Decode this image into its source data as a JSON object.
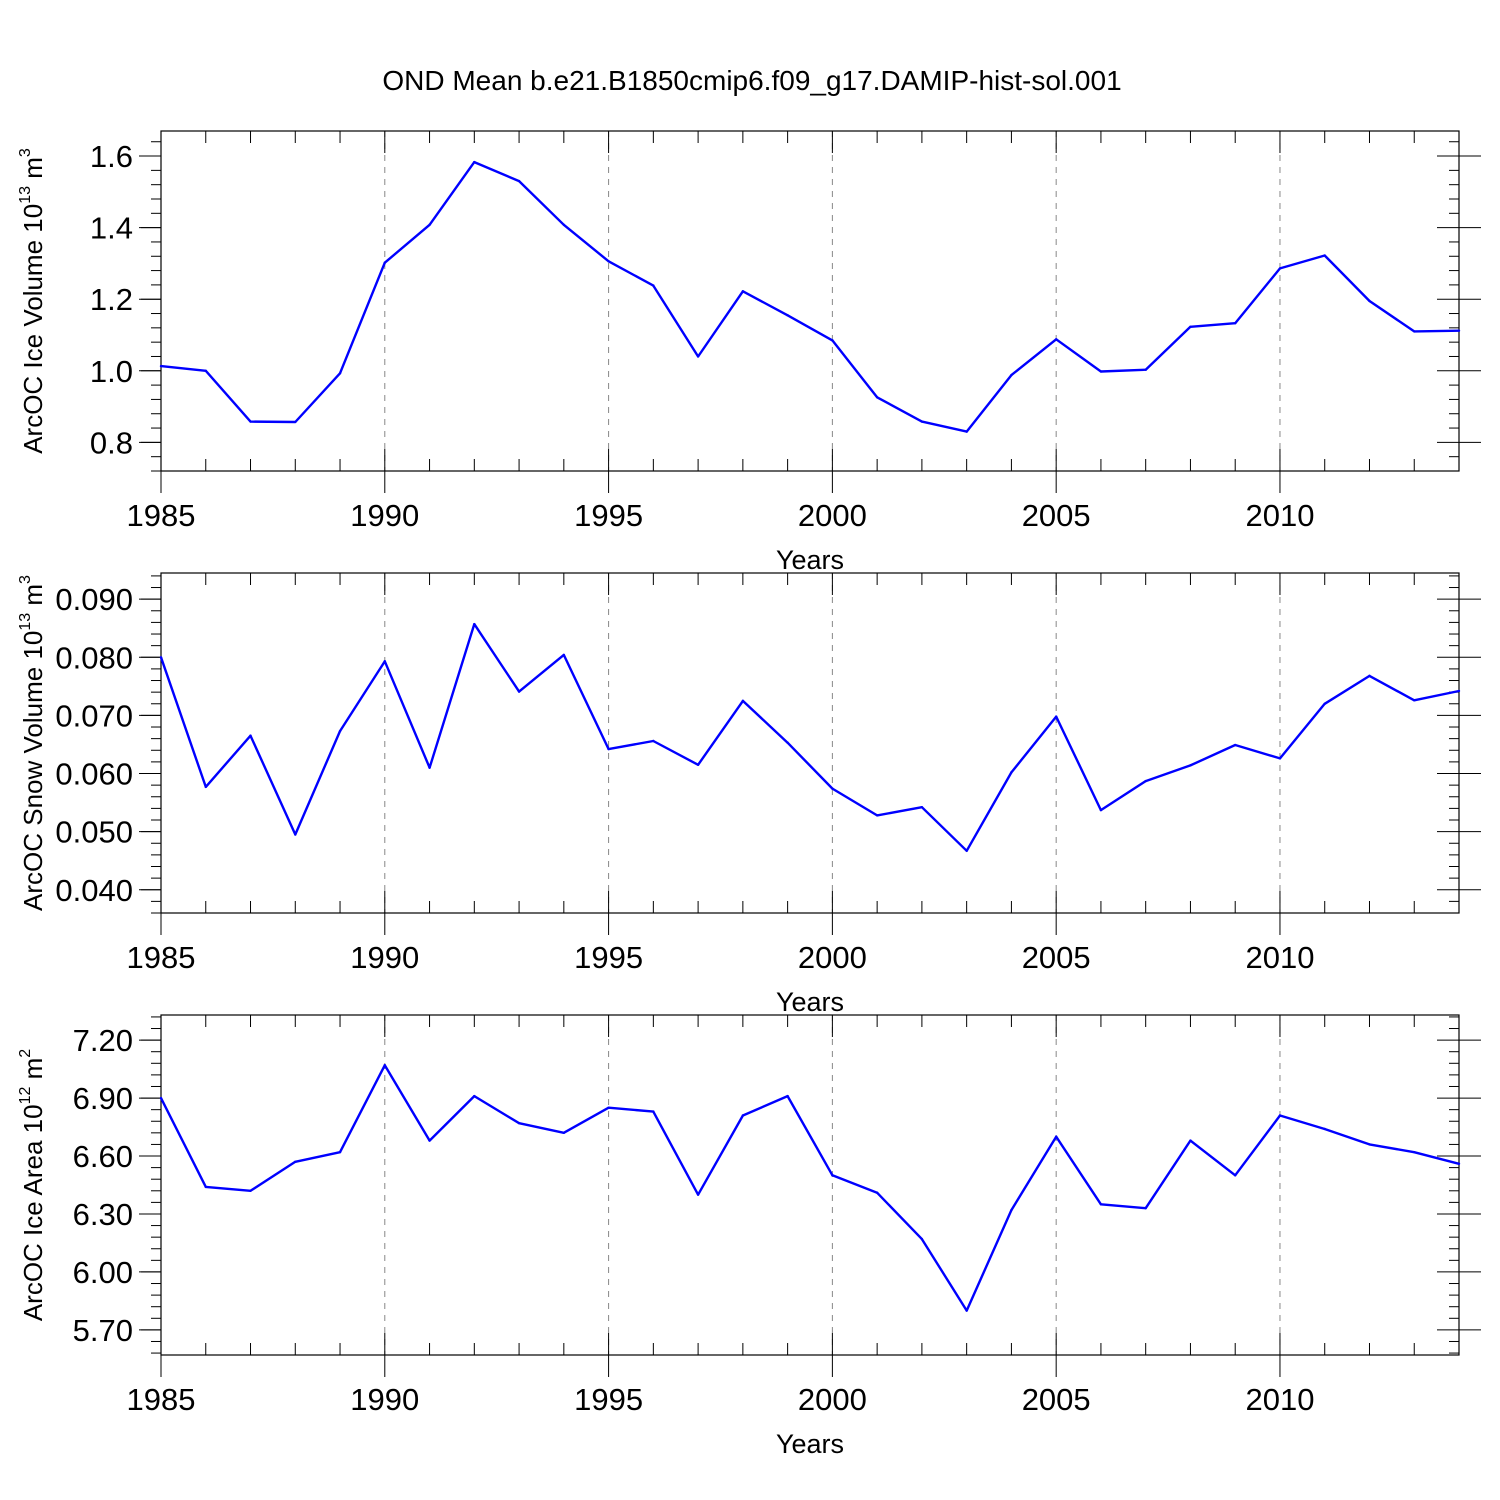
{
  "title": "OND Mean b.e21.B1850cmip6.f09_g17.DAMIP-hist-sol.001",
  "chart_data": [
    {
      "type": "line",
      "title": "OND Mean b.e21.B1850cmip6.f09_g17.DAMIP-hist-sol.001",
      "xlabel": "Years",
      "ylabel": {
        "prefix": "ArcOC Ice Volume 10",
        "exp": "13",
        "unit": " m",
        "unit_exp": "3"
      },
      "x": [
        1985,
        1986,
        1987,
        1988,
        1989,
        1990,
        1991,
        1992,
        1993,
        1994,
        1995,
        1996,
        1997,
        1998,
        1999,
        2000,
        2001,
        2002,
        2003,
        2004,
        2005,
        2006,
        2007,
        2008,
        2009,
        2010,
        2011,
        2012,
        2013,
        2014
      ],
      "values": [
        1.013,
        1.0,
        0.858,
        0.857,
        0.993,
        1.302,
        1.408,
        1.583,
        1.53,
        1.408,
        1.306,
        1.238,
        1.04,
        1.222,
        1.155,
        1.085,
        0.926,
        0.858,
        0.83,
        0.988,
        1.088,
        0.998,
        1.003,
        1.123,
        1.133,
        1.286,
        1.322,
        1.195,
        1.11,
        1.112
      ],
      "xlim": [
        1985,
        2014
      ],
      "ylim": [
        0.72,
        1.67
      ],
      "yticks": [
        0.8,
        1.0,
        1.2,
        1.4,
        1.6
      ],
      "ytick_labels": [
        "0.8",
        "1.0",
        "1.2",
        "1.4",
        "1.6"
      ],
      "xticks": [
        1985,
        1990,
        1995,
        2000,
        2005,
        2010
      ],
      "xtick_labels": [
        "1985",
        "1990",
        "1995",
        "2000",
        "2005",
        "2010"
      ],
      "grid": "vertical dashed at labeled years",
      "line_color": "#0000ff"
    },
    {
      "type": "line",
      "xlabel": "Years",
      "ylabel": {
        "prefix": "ArcOC Snow Volume 10",
        "exp": "13",
        "unit": " m",
        "unit_exp": "3"
      },
      "x": [
        1985,
        1986,
        1987,
        1988,
        1989,
        1990,
        1991,
        1992,
        1993,
        1994,
        1995,
        1996,
        1997,
        1998,
        1999,
        2000,
        2001,
        2002,
        2003,
        2004,
        2005,
        2006,
        2007,
        2008,
        2009,
        2010,
        2011,
        2012,
        2013,
        2014
      ],
      "values": [
        0.08,
        0.0577,
        0.0665,
        0.0495,
        0.0673,
        0.0793,
        0.061,
        0.0857,
        0.0741,
        0.0804,
        0.0642,
        0.0656,
        0.0615,
        0.0725,
        0.0653,
        0.0574,
        0.0528,
        0.0542,
        0.0467,
        0.0602,
        0.0698,
        0.0537,
        0.0587,
        0.0614,
        0.0649,
        0.0626,
        0.072,
        0.0768,
        0.0726,
        0.0742
      ],
      "xlim": [
        1985,
        2014
      ],
      "ylim": [
        0.036,
        0.0945
      ],
      "yticks": [
        0.04,
        0.05,
        0.06,
        0.07,
        0.08,
        0.09
      ],
      "ytick_labels": [
        "0.040",
        "0.050",
        "0.060",
        "0.070",
        "0.080",
        "0.090"
      ],
      "xticks": [
        1985,
        1990,
        1995,
        2000,
        2005,
        2010
      ],
      "xtick_labels": [
        "1985",
        "1990",
        "1995",
        "2000",
        "2005",
        "2010"
      ],
      "grid": "vertical dashed at labeled years",
      "line_color": "#0000ff"
    },
    {
      "type": "line",
      "xlabel": "Years",
      "ylabel": {
        "prefix": "ArcOC Ice Area 10",
        "exp": "12",
        "unit": " m",
        "unit_exp": "2"
      },
      "x": [
        1985,
        1986,
        1987,
        1988,
        1989,
        1990,
        1991,
        1992,
        1993,
        1994,
        1995,
        1996,
        1997,
        1998,
        1999,
        2000,
        2001,
        2002,
        2003,
        2004,
        2005,
        2006,
        2007,
        2008,
        2009,
        2010,
        2011,
        2012,
        2013,
        2014
      ],
      "values": [
        6.9,
        6.44,
        6.42,
        6.57,
        6.62,
        7.07,
        6.68,
        6.91,
        6.77,
        6.72,
        6.85,
        6.83,
        6.4,
        6.81,
        6.91,
        6.5,
        6.41,
        6.17,
        5.8,
        6.32,
        6.7,
        6.35,
        6.33,
        6.68,
        6.5,
        6.81,
        6.74,
        6.66,
        6.62,
        6.56
      ],
      "xlim": [
        1985,
        2014
      ],
      "ylim": [
        5.57,
        7.33
      ],
      "yticks": [
        5.7,
        6.0,
        6.3,
        6.6,
        6.9,
        7.2
      ],
      "ytick_labels": [
        "5.70",
        "6.00",
        "6.30",
        "6.60",
        "6.90",
        "7.20"
      ],
      "xticks": [
        1985,
        1990,
        1995,
        2000,
        2005,
        2010
      ],
      "xtick_labels": [
        "1985",
        "1990",
        "1995",
        "2000",
        "2005",
        "2010"
      ],
      "grid": "vertical dashed at labeled years",
      "line_color": "#0000ff"
    }
  ]
}
